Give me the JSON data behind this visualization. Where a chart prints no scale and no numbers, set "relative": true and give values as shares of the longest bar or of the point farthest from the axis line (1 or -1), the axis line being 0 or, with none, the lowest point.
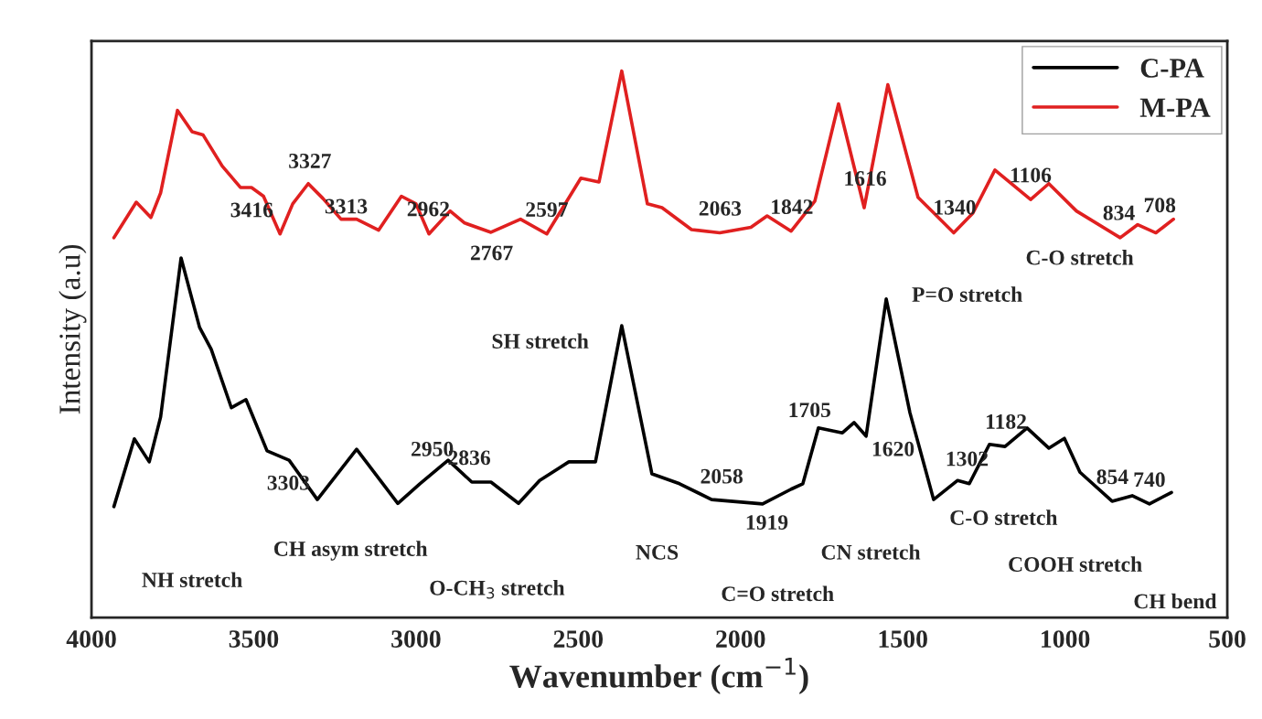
{
  "chart_data": {
    "type": "line",
    "relative": true,
    "xlabel": "Wavenumber (cm$^{−1}$)",
    "ylabel": "Intensity (a.u)",
    "xlim": [
      4000,
      500
    ],
    "xticks": [
      4000,
      3500,
      3000,
      2500,
      2000,
      1500,
      1000,
      500
    ],
    "tick_labels": "x",
    "legend": "top right",
    "grid": false,
    "marker": "none",
    "line_style": "solid",
    "series": [
      {
        "name": "C-PA",
        "color": "#000000",
        "x": [
          3931,
          3868,
          3822,
          3787,
          3724,
          3667,
          3631,
          3569,
          3524,
          3459,
          3391,
          3304,
          3183,
          3056,
          2988,
          2901,
          2828,
          2769,
          2684,
          2619,
          2529,
          2447,
          2366,
          2273,
          2188,
          2089,
          1932,
          1844,
          1808,
          1760,
          1686,
          1650,
          1613,
          1551,
          1478,
          1405,
          1331,
          1295,
          1233,
          1185,
          1117,
          1050,
          1002,
          954,
          855,
          793,
          740,
          672
        ],
        "values": [
          0.203,
          0.327,
          0.285,
          0.367,
          0.658,
          0.531,
          0.491,
          0.384,
          0.399,
          0.305,
          0.288,
          0.216,
          0.308,
          0.209,
          0.245,
          0.288,
          0.248,
          0.248,
          0.209,
          0.251,
          0.285,
          0.285,
          0.534,
          0.263,
          0.245,
          0.216,
          0.208,
          0.235,
          0.245,
          0.347,
          0.338,
          0.357,
          0.332,
          0.583,
          0.375,
          0.216,
          0.251,
          0.245,
          0.317,
          0.313,
          0.347,
          0.31,
          0.328,
          0.266,
          0.213,
          0.223,
          0.208,
          0.229
        ]
      },
      {
        "name": "M-PA",
        "color": "#e02020",
        "x": [
          3931,
          3862,
          3817,
          3787,
          3735,
          3690,
          3656,
          3597,
          3541,
          3507,
          3470,
          3419,
          3380,
          3332,
          3287,
          3231,
          3183,
          3115,
          3045,
          3000,
          2960,
          2895,
          2850,
          2769,
          2678,
          2597,
          2492,
          2436,
          2366,
          2287,
          2242,
          2151,
          2064,
          1968,
          1918,
          1844,
          1771,
          1698,
          1619,
          1546,
          1453,
          1343,
          1284,
          1216,
          1106,
          1050,
          965,
          830,
          776,
          720,
          666
        ],
        "values": [
          0.695,
          0.76,
          0.732,
          0.777,
          0.928,
          0.889,
          0.883,
          0.826,
          0.787,
          0.787,
          0.771,
          0.702,
          0.757,
          0.794,
          0.767,
          0.729,
          0.729,
          0.709,
          0.771,
          0.757,
          0.702,
          0.744,
          0.722,
          0.705,
          0.729,
          0.702,
          0.804,
          0.797,
          1.0,
          0.757,
          0.75,
          0.71,
          0.704,
          0.714,
          0.735,
          0.707,
          0.762,
          0.94,
          0.75,
          0.975,
          0.769,
          0.704,
          0.74,
          0.819,
          0.765,
          0.794,
          0.744,
          0.695,
          0.719,
          0.704,
          0.729
        ]
      }
    ],
    "annotations": [
      {
        "text": "3416",
        "x": 3416,
        "y": 0.706
      },
      {
        "text": "3327",
        "x": 3327,
        "y": 0.791
      },
      {
        "text": "3313",
        "x": 3313,
        "y": 0.781
      },
      {
        "text": "2962",
        "x": 2962,
        "y": 0.703
      },
      {
        "text": "2767",
        "x": 2767,
        "y": 0.705
      },
      {
        "text": "2597",
        "x": 2597,
        "y": 0.702
      },
      {
        "text": "2063",
        "x": 2063,
        "y": 0.704
      },
      {
        "text": "1842",
        "x": 1842,
        "y": 0.707
      },
      {
        "text": "1616",
        "x": 1616,
        "y": 0.759
      },
      {
        "text": "1340",
        "x": 1340,
        "y": 0.706
      },
      {
        "text": "1106",
        "x": 1106,
        "y": 0.765
      },
      {
        "text": "834",
        "x": 834,
        "y": 0.696
      },
      {
        "text": "708",
        "x": 708,
        "y": 0.71
      },
      {
        "text": "3303",
        "x": 3303,
        "y": 0.216
      },
      {
        "text": "2950",
        "x": 2950,
        "y": 0.264
      },
      {
        "text": "2836",
        "x": 2836,
        "y": 0.248
      },
      {
        "text": "2058",
        "x": 2058,
        "y": 0.214
      },
      {
        "text": "1919",
        "x": 1919,
        "y": 0.212
      },
      {
        "text": "1705",
        "x": 1705,
        "y": 0.34
      },
      {
        "text": "1620",
        "x": 1620,
        "y": 0.337
      },
      {
        "text": "1302",
        "x": 1302,
        "y": 0.246
      },
      {
        "text": "1182",
        "x": 1182,
        "y": 0.314
      },
      {
        "text": "854",
        "x": 854,
        "y": 0.213
      },
      {
        "text": "740",
        "x": 740,
        "y": 0.208
      },
      "NH stretch",
      "CH asym stretch",
      "O-CH$_{3}$ stretch",
      "SH stretch",
      "NCS",
      "C=O stretch",
      "CN stretch",
      "C-O stretch",
      "COOH stretch",
      "CH bend",
      "P=O stretch",
      "C-O stretch"
    ]
  }
}
